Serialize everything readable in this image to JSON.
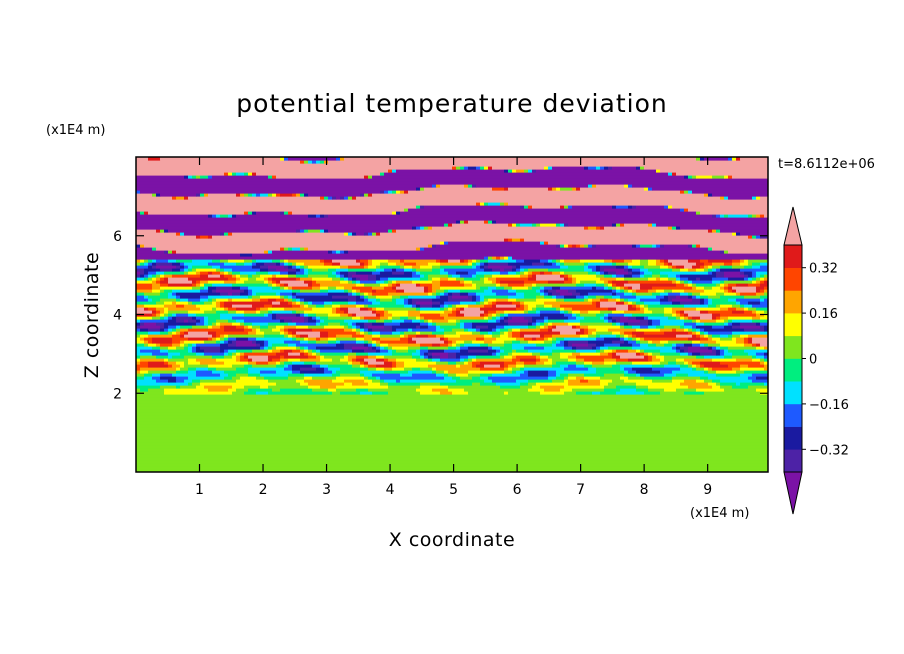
{
  "chart_data": {
    "type": "heatmap",
    "title": "potential temperature deviation",
    "xlabel": "X coordinate",
    "ylabel": "Z coordinate",
    "x_unit_label": "(x1E4 m)",
    "y_unit_label": "(x1E4 m)",
    "time_label": "t=8.6112e+06",
    "xlim": [
      0,
      9.95
    ],
    "ylim": [
      0,
      8
    ],
    "x_ticks": [
      1,
      2,
      3,
      4,
      5,
      6,
      7,
      8,
      9
    ],
    "y_ticks": [
      2,
      4,
      6
    ],
    "colorbar": {
      "levels": [
        -0.4,
        -0.32,
        -0.24,
        -0.16,
        -0.08,
        0,
        0.08,
        0.16,
        0.24,
        0.32,
        0.4
      ],
      "tick_values": [
        -0.32,
        -0.16,
        0,
        0.16,
        0.32
      ],
      "tick_labels": [
        "-0.32",
        "-0.16",
        "0",
        "0.16",
        "0.32"
      ],
      "extend": "both",
      "colors": [
        "#7b12a6",
        "#4d22a6",
        "#1a1aa0",
        "#1e5aff",
        "#00e1ff",
        "#00ee7f",
        "#7fe61e",
        "#ffff00",
        "#ffa500",
        "#ff4500",
        "#e01a1a",
        "#f4a3a3"
      ]
    },
    "regions": [
      {
        "z_range": [
          0,
          2
        ],
        "description_values": [
          0,
          0.08
        ]
      },
      {
        "z_range": [
          2,
          5.5
        ],
        "description_values": [
          -0.4,
          0.4
        ]
      },
      {
        "z_range": [
          5.5,
          8
        ],
        "description_values": [
          -0.4,
          0.4
        ]
      }
    ]
  }
}
